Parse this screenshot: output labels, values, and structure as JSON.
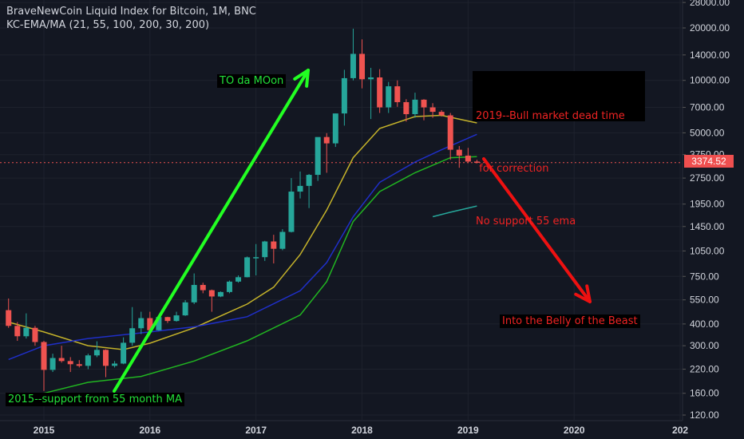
{
  "header": {
    "line1": "BraveNewCoin Liquid Index for Bitcoin, 1M, BNC",
    "line2": "KC-EMA/MA (21, 55, 100, 200, 30, 200)"
  },
  "current_price": "3374.52",
  "annotations": {
    "moon": "TO da MOon",
    "support": "2015--support from 55 month MA",
    "bear2019": [
      "2019--Bull market dead time",
      " for correction",
      "No support 55 ema"
    ],
    "belly": "Into the Belly of the Beast"
  },
  "colors": {
    "background": "#131722",
    "up": "#26a69a",
    "down": "#ef5350",
    "ema21": "#c4b22a",
    "ema55": "#1f2fc8",
    "ma100": "#21b521",
    "ma200": "#26a69a",
    "arrow_green": "#22ff22",
    "arrow_red": "#ee1111"
  },
  "chart_data": {
    "type": "candlestick",
    "title": "BraveNewCoin Liquid Index for Bitcoin, 1M, BNC",
    "y_scale": "log",
    "y_ticks": [
      120,
      160,
      220,
      300,
      400,
      550,
      750,
      1050,
      1450,
      1950,
      2750,
      3750,
      5000,
      7000,
      10000,
      14000,
      20000,
      28000
    ],
    "y_tick_labels": [
      "120.00",
      "160.00",
      "220.00",
      "300.00",
      "400.00",
      "550.00",
      "750.00",
      "1050.00",
      "1450.00",
      "1950.00",
      "2750.00",
      "3750.00",
      "5000.00",
      "7000.00",
      "10000.00",
      "14000.00",
      "20000.00",
      "28000.00"
    ],
    "x_ticks": [
      "2015-01",
      "2016-01",
      "2017-01",
      "2018-01",
      "2019-01",
      "2020-01",
      "2021-01"
    ],
    "x_tick_labels": [
      "2015",
      "2016",
      "2017",
      "2018",
      "2019",
      "2020",
      "202"
    ],
    "candles": [
      {
        "t": "2014-09",
        "o": 480,
        "h": 560,
        "l": 380,
        "c": 390
      },
      {
        "t": "2014-10",
        "o": 390,
        "h": 410,
        "l": 320,
        "c": 340
      },
      {
        "t": "2014-11",
        "o": 340,
        "h": 460,
        "l": 330,
        "c": 380
      },
      {
        "t": "2014-12",
        "o": 380,
        "h": 390,
        "l": 300,
        "c": 315
      },
      {
        "t": "2015-01",
        "o": 315,
        "h": 320,
        "l": 165,
        "c": 218
      },
      {
        "t": "2015-02",
        "o": 218,
        "h": 270,
        "l": 212,
        "c": 255
      },
      {
        "t": "2015-03",
        "o": 255,
        "h": 300,
        "l": 240,
        "c": 245
      },
      {
        "t": "2015-04",
        "o": 245,
        "h": 258,
        "l": 212,
        "c": 235
      },
      {
        "t": "2015-05",
        "o": 235,
        "h": 248,
        "l": 225,
        "c": 230
      },
      {
        "t": "2015-06",
        "o": 230,
        "h": 270,
        "l": 220,
        "c": 264
      },
      {
        "t": "2015-07",
        "o": 264,
        "h": 318,
        "l": 258,
        "c": 284
      },
      {
        "t": "2015-08",
        "o": 284,
        "h": 286,
        "l": 198,
        "c": 230
      },
      {
        "t": "2015-09",
        "o": 230,
        "h": 245,
        "l": 225,
        "c": 237
      },
      {
        "t": "2015-10",
        "o": 237,
        "h": 335,
        "l": 235,
        "c": 312
      },
      {
        "t": "2015-11",
        "o": 312,
        "h": 500,
        "l": 300,
        "c": 378
      },
      {
        "t": "2015-12",
        "o": 378,
        "h": 470,
        "l": 350,
        "c": 432
      },
      {
        "t": "2016-01",
        "o": 432,
        "h": 470,
        "l": 355,
        "c": 368
      },
      {
        "t": "2016-02",
        "o": 368,
        "h": 445,
        "l": 365,
        "c": 438
      },
      {
        "t": "2016-03",
        "o": 438,
        "h": 440,
        "l": 405,
        "c": 416
      },
      {
        "t": "2016-04",
        "o": 416,
        "h": 470,
        "l": 412,
        "c": 448
      },
      {
        "t": "2016-05",
        "o": 448,
        "h": 548,
        "l": 445,
        "c": 532
      },
      {
        "t": "2016-06",
        "o": 532,
        "h": 780,
        "l": 520,
        "c": 670
      },
      {
        "t": "2016-07",
        "o": 670,
        "h": 690,
        "l": 600,
        "c": 625
      },
      {
        "t": "2016-08",
        "o": 625,
        "h": 630,
        "l": 470,
        "c": 575
      },
      {
        "t": "2016-09",
        "o": 575,
        "h": 615,
        "l": 570,
        "c": 610
      },
      {
        "t": "2016-10",
        "o": 610,
        "h": 710,
        "l": 600,
        "c": 700
      },
      {
        "t": "2016-11",
        "o": 700,
        "h": 760,
        "l": 690,
        "c": 742
      },
      {
        "t": "2016-12",
        "o": 742,
        "h": 975,
        "l": 740,
        "c": 965
      },
      {
        "t": "2017-01",
        "o": 965,
        "h": 1150,
        "l": 760,
        "c": 967
      },
      {
        "t": "2017-02",
        "o": 967,
        "h": 1200,
        "l": 920,
        "c": 1190
      },
      {
        "t": "2017-03",
        "o": 1190,
        "h": 1300,
        "l": 890,
        "c": 1080
      },
      {
        "t": "2017-04",
        "o": 1080,
        "h": 1400,
        "l": 1060,
        "c": 1350
      },
      {
        "t": "2017-05",
        "o": 1350,
        "h": 2750,
        "l": 1340,
        "c": 2300
      },
      {
        "t": "2017-06",
        "o": 2300,
        "h": 3000,
        "l": 2100,
        "c": 2480
      },
      {
        "t": "2017-07",
        "o": 2480,
        "h": 2900,
        "l": 1850,
        "c": 2870
      },
      {
        "t": "2017-08",
        "o": 2870,
        "h": 4700,
        "l": 2650,
        "c": 4730
      },
      {
        "t": "2017-09",
        "o": 4730,
        "h": 4980,
        "l": 2950,
        "c": 4350
      },
      {
        "t": "2017-10",
        "o": 4350,
        "h": 6450,
        "l": 4150,
        "c": 6460
      },
      {
        "t": "2017-11",
        "o": 6460,
        "h": 11500,
        "l": 5500,
        "c": 10300
      },
      {
        "t": "2017-12",
        "o": 10300,
        "h": 19800,
        "l": 10000,
        "c": 14200
      },
      {
        "t": "2018-01",
        "o": 14200,
        "h": 17200,
        "l": 9000,
        "c": 10150
      },
      {
        "t": "2018-02",
        "o": 10150,
        "h": 11800,
        "l": 6000,
        "c": 10400
      },
      {
        "t": "2018-03",
        "o": 10400,
        "h": 11600,
        "l": 6500,
        "c": 7000
      },
      {
        "t": "2018-04",
        "o": 7000,
        "h": 9800,
        "l": 6500,
        "c": 9250
      },
      {
        "t": "2018-05",
        "o": 9250,
        "h": 10000,
        "l": 7050,
        "c": 7500
      },
      {
        "t": "2018-06",
        "o": 7500,
        "h": 7800,
        "l": 5800,
        "c": 6400
      },
      {
        "t": "2018-07",
        "o": 6400,
        "h": 8500,
        "l": 6100,
        "c": 7750
      },
      {
        "t": "2018-08",
        "o": 7750,
        "h": 7800,
        "l": 5900,
        "c": 7000
      },
      {
        "t": "2018-09",
        "o": 7000,
        "h": 7400,
        "l": 6100,
        "c": 6600
      },
      {
        "t": "2018-10",
        "o": 6600,
        "h": 6750,
        "l": 6200,
        "c": 6300
      },
      {
        "t": "2018-11",
        "o": 6300,
        "h": 6500,
        "l": 3500,
        "c": 4000
      },
      {
        "t": "2018-12",
        "o": 4000,
        "h": 4200,
        "l": 3150,
        "c": 3700
      },
      {
        "t": "2019-01",
        "o": 3700,
        "h": 4100,
        "l": 3350,
        "c": 3420
      },
      {
        "t": "2019-02",
        "o": 3420,
        "h": 3500,
        "l": 3340,
        "c": 3374.52
      }
    ],
    "lines": [
      {
        "key": "ema21",
        "color": "#c4b22a",
        "points": [
          [
            "2014-09",
            410
          ],
          [
            "2015-01",
            360
          ],
          [
            "2015-06",
            300
          ],
          [
            "2015-10",
            285
          ],
          [
            "2016-01",
            310
          ],
          [
            "2016-06",
            380
          ],
          [
            "2016-12",
            520
          ],
          [
            "2017-03",
            650
          ],
          [
            "2017-06",
            1000
          ],
          [
            "2017-09",
            1800
          ],
          [
            "2017-12",
            3600
          ],
          [
            "2018-03",
            5300
          ],
          [
            "2018-07",
            6200
          ],
          [
            "2018-10",
            6300
          ],
          [
            "2019-02",
            5700
          ]
        ]
      },
      {
        "key": "ema55",
        "color": "#1f2fc8",
        "points": [
          [
            "2014-09",
            250
          ],
          [
            "2015-01",
            300
          ],
          [
            "2015-06",
            330
          ],
          [
            "2016-01",
            360
          ],
          [
            "2016-06",
            385
          ],
          [
            "2016-12",
            440
          ],
          [
            "2017-06",
            620
          ],
          [
            "2017-09",
            900
          ],
          [
            "2017-12",
            1650
          ],
          [
            "2018-03",
            2600
          ],
          [
            "2018-07",
            3400
          ],
          [
            "2018-10",
            4000
          ],
          [
            "2019-02",
            4900
          ]
        ]
      },
      {
        "key": "ma100",
        "color": "#21b521",
        "points": [
          [
            "2015-01",
            160
          ],
          [
            "2015-06",
            185
          ],
          [
            "2015-12",
            200
          ],
          [
            "2016-06",
            245
          ],
          [
            "2016-12",
            320
          ],
          [
            "2017-06",
            450
          ],
          [
            "2017-09",
            700
          ],
          [
            "2017-12",
            1550
          ],
          [
            "2018-03",
            2300
          ],
          [
            "2018-07",
            2950
          ],
          [
            "2018-11",
            3600
          ],
          [
            "2019-02",
            3650
          ]
        ]
      },
      {
        "key": "ma200",
        "color": "#26a69a",
        "points": [
          [
            "2018-09",
            1650
          ],
          [
            "2018-11",
            1750
          ],
          [
            "2019-02",
            1900
          ]
        ]
      }
    ]
  }
}
